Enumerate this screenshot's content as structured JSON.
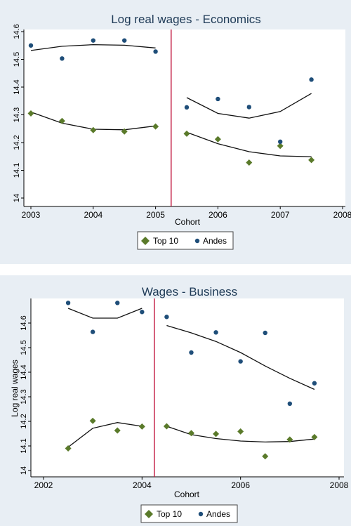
{
  "chart_data": [
    {
      "type": "scatter",
      "title": "Log real wages - Economics",
      "xlabel": "Cohort",
      "ylabel": "",
      "xlim": [
        2003,
        2008
      ],
      "ylim": [
        14,
        14.6
      ],
      "xticks": [
        "2003",
        "2004",
        "2005",
        "2006",
        "2007",
        "2008"
      ],
      "yticks": [
        "14",
        "14.1",
        "14.2",
        "14.3",
        "14.4",
        "14.5",
        "14.6"
      ],
      "vline_x": 2005.25,
      "legend": [
        "Top 10",
        "Andes"
      ],
      "legend_position": "bottom",
      "series": [
        {
          "name": "Top 10",
          "marker": "diamond",
          "color": "#5a7a2a",
          "points": [
            [
              2003,
              14.305
            ],
            [
              2003.5,
              14.278
            ],
            [
              2004,
              14.245
            ],
            [
              2004.5,
              14.24
            ],
            [
              2005,
              14.258
            ],
            [
              2005.5,
              14.232
            ],
            [
              2006,
              14.212
            ],
            [
              2006.5,
              14.128
            ],
            [
              2007,
              14.188
            ],
            [
              2007.5,
              14.137
            ]
          ],
          "fit_left": [
            [
              2003,
              14.31
            ],
            [
              2003.5,
              14.27
            ],
            [
              2004,
              14.248
            ],
            [
              2004.5,
              14.246
            ],
            [
              2005,
              14.26
            ]
          ],
          "fit_right": [
            [
              2005.5,
              14.237
            ],
            [
              2006,
              14.196
            ],
            [
              2006.5,
              14.167
            ],
            [
              2007,
              14.152
            ],
            [
              2007.5,
              14.149
            ]
          ]
        },
        {
          "name": "Andes",
          "marker": "circle",
          "color": "#1f4e79",
          "points": [
            [
              2003,
              14.55
            ],
            [
              2003.5,
              14.503
            ],
            [
              2004,
              14.568
            ],
            [
              2004.5,
              14.568
            ],
            [
              2005,
              14.528
            ],
            [
              2005.5,
              14.327
            ],
            [
              2006,
              14.357
            ],
            [
              2006.5,
              14.328
            ],
            [
              2007,
              14.203
            ],
            [
              2007.5,
              14.427
            ]
          ],
          "fit_left": [
            [
              2003,
              14.532
            ],
            [
              2003.5,
              14.547
            ],
            [
              2004,
              14.553
            ],
            [
              2004.5,
              14.551
            ],
            [
              2005,
              14.541
            ]
          ],
          "fit_right": [
            [
              2005.5,
              14.362
            ],
            [
              2006,
              14.305
            ],
            [
              2006.5,
              14.288
            ],
            [
              2007,
              14.312
            ],
            [
              2007.5,
              14.377
            ]
          ]
        }
      ]
    },
    {
      "type": "scatter",
      "title": "Wages - Business",
      "xlabel": "Cohort",
      "ylabel": "Log real wages",
      "xlim": [
        2002,
        2008
      ],
      "ylim": [
        14,
        14.7
      ],
      "xticks": [
        "2002",
        "2004",
        "2006",
        "2008"
      ],
      "yticks": [
        "14",
        "14.1",
        "14.2",
        "14.3",
        "14.4",
        "14.5",
        "14.6"
      ],
      "vline_x": 2004.25,
      "legend": [
        "Top 10",
        "Andes"
      ],
      "legend_position": "bottom",
      "series": [
        {
          "name": "Top 10",
          "marker": "diamond",
          "color": "#5a7a2a",
          "points": [
            [
              2002.5,
              14.09
            ],
            [
              2003,
              14.202
            ],
            [
              2003.5,
              14.163
            ],
            [
              2004,
              14.179
            ],
            [
              2004.5,
              14.18
            ],
            [
              2005,
              14.152
            ],
            [
              2005.5,
              14.149
            ],
            [
              2006,
              14.159
            ],
            [
              2006.5,
              14.058
            ],
            [
              2007,
              14.126
            ],
            [
              2007.5,
              14.136
            ]
          ],
          "fit_left": [
            [
              2002.5,
              14.095
            ],
            [
              2003,
              14.172
            ],
            [
              2003.5,
              14.195
            ],
            [
              2004,
              14.18
            ]
          ],
          "fit_right": [
            [
              2004.5,
              14.18
            ],
            [
              2005,
              14.146
            ],
            [
              2005.5,
              14.13
            ],
            [
              2006,
              14.12
            ],
            [
              2006.5,
              14.116
            ],
            [
              2007,
              14.118
            ],
            [
              2007.5,
              14.128
            ]
          ]
        },
        {
          "name": "Andes",
          "marker": "circle",
          "color": "#1f4e79",
          "points": [
            [
              2002.5,
              14.682
            ],
            [
              2003,
              14.564
            ],
            [
              2003.5,
              14.682
            ],
            [
              2004,
              14.645
            ],
            [
              2004.5,
              14.625
            ],
            [
              2005,
              14.48
            ],
            [
              2005.5,
              14.562
            ],
            [
              2006,
              14.444
            ],
            [
              2006.5,
              14.56
            ],
            [
              2007,
              14.272
            ],
            [
              2007.5,
              14.355
            ]
          ],
          "fit_left": [
            [
              2002.5,
              14.66
            ],
            [
              2003,
              14.62
            ],
            [
              2003.5,
              14.62
            ],
            [
              2004,
              14.66
            ]
          ],
          "fit_right": [
            [
              2004.5,
              14.59
            ],
            [
              2005,
              14.56
            ],
            [
              2005.5,
              14.525
            ],
            [
              2006,
              14.48
            ],
            [
              2006.5,
              14.425
            ],
            [
              2007,
              14.375
            ],
            [
              2007.5,
              14.33
            ]
          ]
        }
      ]
    }
  ]
}
